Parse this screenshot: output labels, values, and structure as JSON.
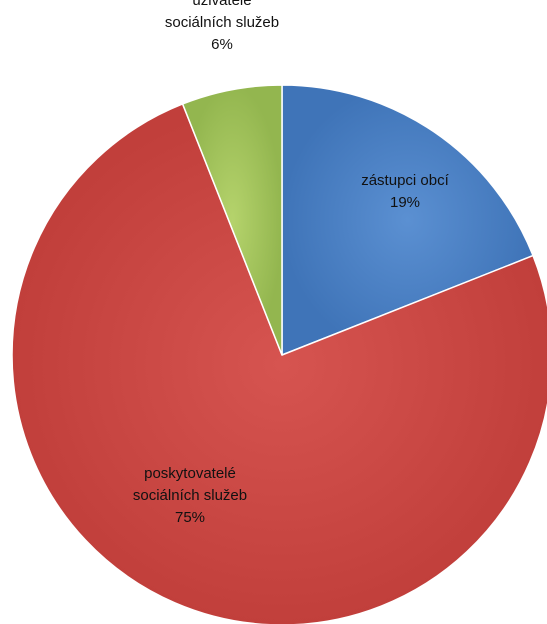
{
  "chart_data": {
    "type": "pie",
    "title": "",
    "slices": [
      {
        "label_lines": [
          "zástupci obcí"
        ],
        "value": 19,
        "percent_label": "19%",
        "color": "#4f81bd"
      },
      {
        "label_lines": [
          "poskytovatelé",
          "sociálních služeb"
        ],
        "value": 75,
        "percent_label": "75%",
        "color": "#c0504d"
      },
      {
        "label_lines": [
          "uživatelé",
          "sociálních služeb"
        ],
        "value": 6,
        "percent_label": "6%",
        "color": "#9bbb59"
      }
    ],
    "start": "12 o'clock",
    "direction": "clockwise",
    "legend": "none"
  }
}
